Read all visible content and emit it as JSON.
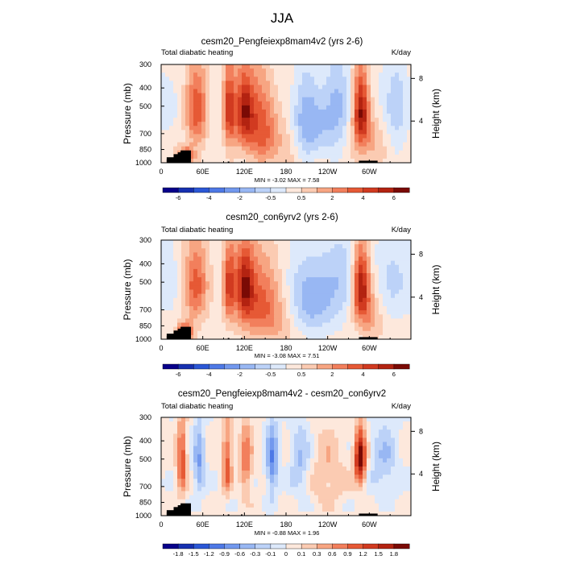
{
  "figure_title": "JJA",
  "chart_data": [
    {
      "type": "heatmap",
      "title": "cesm20_Pengfeiexp8mam4v2 (yrs 2-6)",
      "left_label": "Total diabatic heating",
      "right_label": "K/day",
      "ylabel": "Pressure (mb)",
      "ylabel_right": "Height (km)",
      "x_ticks": [
        "0",
        "60E",
        "120E",
        "180",
        "120W",
        "60W"
      ],
      "y_ticks": [
        "300",
        "400",
        "500",
        "700",
        "850",
        "1000"
      ],
      "height_ticks": [
        "8",
        "4"
      ],
      "stats": "MIN = -3.02  MAX =  7.58",
      "colorbar_labels": [
        "-6",
        "-4",
        "-2",
        "-0.5",
        "0.5",
        "2",
        "4",
        "6"
      ],
      "colorbar_colors": [
        "#08008a",
        "#1630b0",
        "#2b57d6",
        "#4e79e6",
        "#7298ee",
        "#98b7f3",
        "#bcd2f8",
        "#dde9fb",
        "#fde8dc",
        "#fbcbb2",
        "#f7a582",
        "#f27f5c",
        "#e65935",
        "#d13a20",
        "#b32311",
        "#7a0a05"
      ]
    },
    {
      "type": "heatmap",
      "title": "cesm20_con6yrv2 (yrs 2-6)",
      "left_label": "Total diabatic heating",
      "right_label": "K/day",
      "ylabel": "Pressure (mb)",
      "ylabel_right": "Height (km)",
      "x_ticks": [
        "0",
        "60E",
        "120E",
        "180",
        "120W",
        "60W"
      ],
      "y_ticks": [
        "300",
        "400",
        "500",
        "700",
        "850",
        "1000"
      ],
      "height_ticks": [
        "8",
        "4"
      ],
      "stats": "MIN = -3.08  MAX =  7.51",
      "colorbar_labels": [
        "-6",
        "-4",
        "-2",
        "-0.5",
        "0.5",
        "2",
        "4",
        "6"
      ],
      "colorbar_colors": [
        "#08008a",
        "#1630b0",
        "#2b57d6",
        "#4e79e6",
        "#7298ee",
        "#98b7f3",
        "#bcd2f8",
        "#dde9fb",
        "#fde8dc",
        "#fbcbb2",
        "#f7a582",
        "#f27f5c",
        "#e65935",
        "#d13a20",
        "#b32311",
        "#7a0a05"
      ]
    },
    {
      "type": "heatmap",
      "title": "cesm20_Pengfeiexp8mam4v2 - cesm20_con6yrv2",
      "left_label": "Total diabatic heating",
      "right_label": "K/day",
      "ylabel": "Pressure (mb)",
      "ylabel_right": "Height (km)",
      "x_ticks": [
        "0",
        "60E",
        "120E",
        "180",
        "120W",
        "60W"
      ],
      "y_ticks": [
        "300",
        "400",
        "500",
        "700",
        "850",
        "1000"
      ],
      "height_ticks": [
        "8",
        "4"
      ],
      "stats": "MIN = -0.88  MAX =  1.96",
      "colorbar_labels": [
        "-1.8",
        "-1.5",
        "-1.2",
        "-0.9",
        "-0.6",
        "-0.3",
        "-0.1",
        "0",
        "0.1",
        "0.3",
        "0.6",
        "0.9",
        "1.2",
        "1.5",
        "1.8"
      ],
      "colorbar_colors": [
        "#08008a",
        "#1630b0",
        "#2b57d6",
        "#4e79e6",
        "#7298ee",
        "#98b7f3",
        "#bcd2f8",
        "#dde9fb",
        "#fde8dc",
        "#fbcbb2",
        "#f7a582",
        "#f27f5c",
        "#e65935",
        "#d13a20",
        "#b32311",
        "#7a0a05"
      ]
    }
  ]
}
